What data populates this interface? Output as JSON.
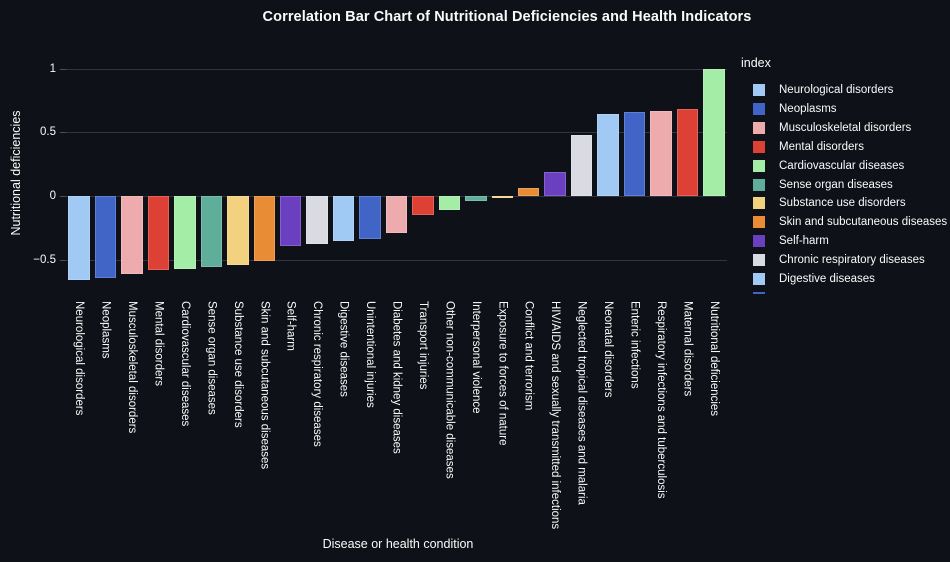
{
  "title": "Correlation Bar Chart of Nutritional Deficiencies and Health Indicators",
  "colors": {
    "background": "#0e1117",
    "text": "#fafafa",
    "gridline": "#32353f",
    "tick": "#4a4e59"
  },
  "chart_data": {
    "type": "bar",
    "title": "Correlation Bar Chart of Nutritional Deficiencies and Health Indicators",
    "xlabel": "Disease or health condition",
    "ylabel": "Nutritional deficiencies",
    "ylim": [
      -0.79,
      1.0
    ],
    "grid": true,
    "legend_position": "right",
    "yticks": [
      {
        "value": 1,
        "label": "1"
      },
      {
        "value": 0.5,
        "label": "0.5"
      },
      {
        "value": 0,
        "label": "0"
      },
      {
        "value": -0.5,
        "label": "−0.5"
      }
    ],
    "color_cycle": [
      "#a0c9f4",
      "#4065c7",
      "#edabad",
      "#dd4136",
      "#a3eda6",
      "#5fae99",
      "#f2d27f",
      "#e88d35",
      "#6b40c0",
      "#dadae3"
    ],
    "categories": [
      "Neurological disorders",
      "Neoplasms",
      "Musculoskeletal disorders",
      "Mental disorders",
      "Cardiovascular diseases",
      "Sense organ diseases",
      "Substance use disorders",
      "Skin and subcutaneous diseases",
      "Self-harm",
      "Chronic respiratory diseases",
      "Digestive diseases",
      "Unintentional injuries",
      "Diabetes and kidney diseases",
      "Transport injuries",
      "Other non-communicable diseases",
      "Interpersonal violence",
      "Exposure to forces of nature",
      "Conflict and terrorism",
      "HIV/AIDS and sexually transmitted infections",
      "Neglected tropical diseases and malaria",
      "Neonatal disorders",
      "Enteric infections",
      "Respiratory infections and tuberculosis",
      "Maternal disorders",
      "Nutritional deficiencies"
    ],
    "values": [
      -0.66,
      -0.64,
      -0.61,
      -0.58,
      -0.57,
      -0.56,
      -0.54,
      -0.51,
      -0.39,
      -0.38,
      -0.35,
      -0.34,
      -0.29,
      -0.15,
      -0.11,
      -0.04,
      -0.01,
      0.06,
      0.19,
      0.48,
      0.64,
      0.66,
      0.67,
      0.68,
      1.0
    ],
    "legend": {
      "title": "index",
      "entries": [
        {
          "label": "Neurological disorders",
          "color": "#a0c9f4"
        },
        {
          "label": "Neoplasms",
          "color": "#4065c7"
        },
        {
          "label": "Musculoskeletal disorders",
          "color": "#edabad"
        },
        {
          "label": "Mental disorders",
          "color": "#dd4136"
        },
        {
          "label": "Cardiovascular diseases",
          "color": "#a3eda6"
        },
        {
          "label": "Sense organ diseases",
          "color": "#5fae99"
        },
        {
          "label": "Substance use disorders",
          "color": "#f2d27f"
        },
        {
          "label": "Skin and subcutaneous diseases",
          "color": "#e88d35"
        },
        {
          "label": "Self-harm",
          "color": "#6b40c0"
        },
        {
          "label": "Chronic respiratory diseases",
          "color": "#dadae3"
        },
        {
          "label": "Digestive diseases",
          "color": "#a0c9f4"
        }
      ],
      "truncated": true,
      "partial_entry_color": "#4065c7"
    }
  }
}
